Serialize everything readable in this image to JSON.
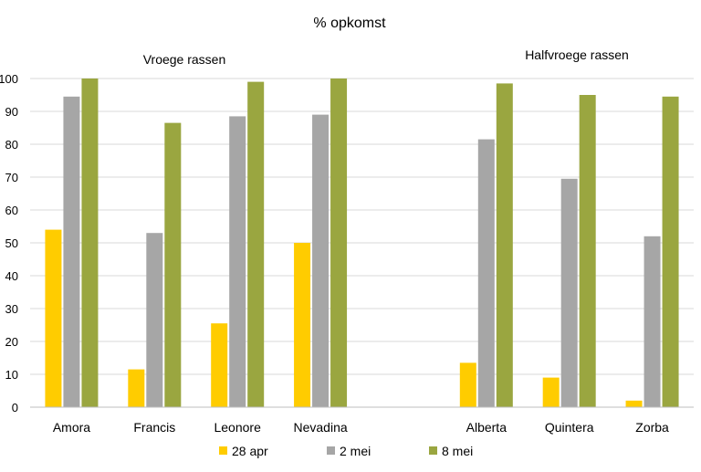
{
  "chart_data": {
    "type": "bar",
    "title": "% opkomst",
    "group_labels": [
      "Vroege rassen",
      "Halfvroege rassen"
    ],
    "categories": [
      "Amora",
      "Francis",
      "Leonore",
      "Nevadina",
      "Alberta",
      "Quintera",
      "Zorba"
    ],
    "category_groups": [
      0,
      0,
      0,
      0,
      1,
      1,
      1
    ],
    "series": [
      {
        "name": "28 apr",
        "color": "#FFCC00",
        "values": [
          54,
          11.5,
          25.5,
          50,
          13.5,
          9,
          2
        ]
      },
      {
        "name": "2 mei",
        "color": "#A6A6A6",
        "values": [
          94.5,
          53,
          88.5,
          89,
          81.5,
          69.5,
          52
        ]
      },
      {
        "name": "8 mei",
        "color": "#9AA640",
        "values": [
          100,
          86.5,
          99,
          100,
          98.5,
          95,
          94.5
        ]
      }
    ],
    "ylim": [
      0,
      100
    ],
    "yticks": [
      "0",
      "10",
      "20",
      "30",
      "40",
      "50",
      "60",
      "70",
      "80",
      "90",
      "100"
    ],
    "xlabel": "",
    "ylabel": "",
    "grid": true,
    "legend": "bottom"
  }
}
